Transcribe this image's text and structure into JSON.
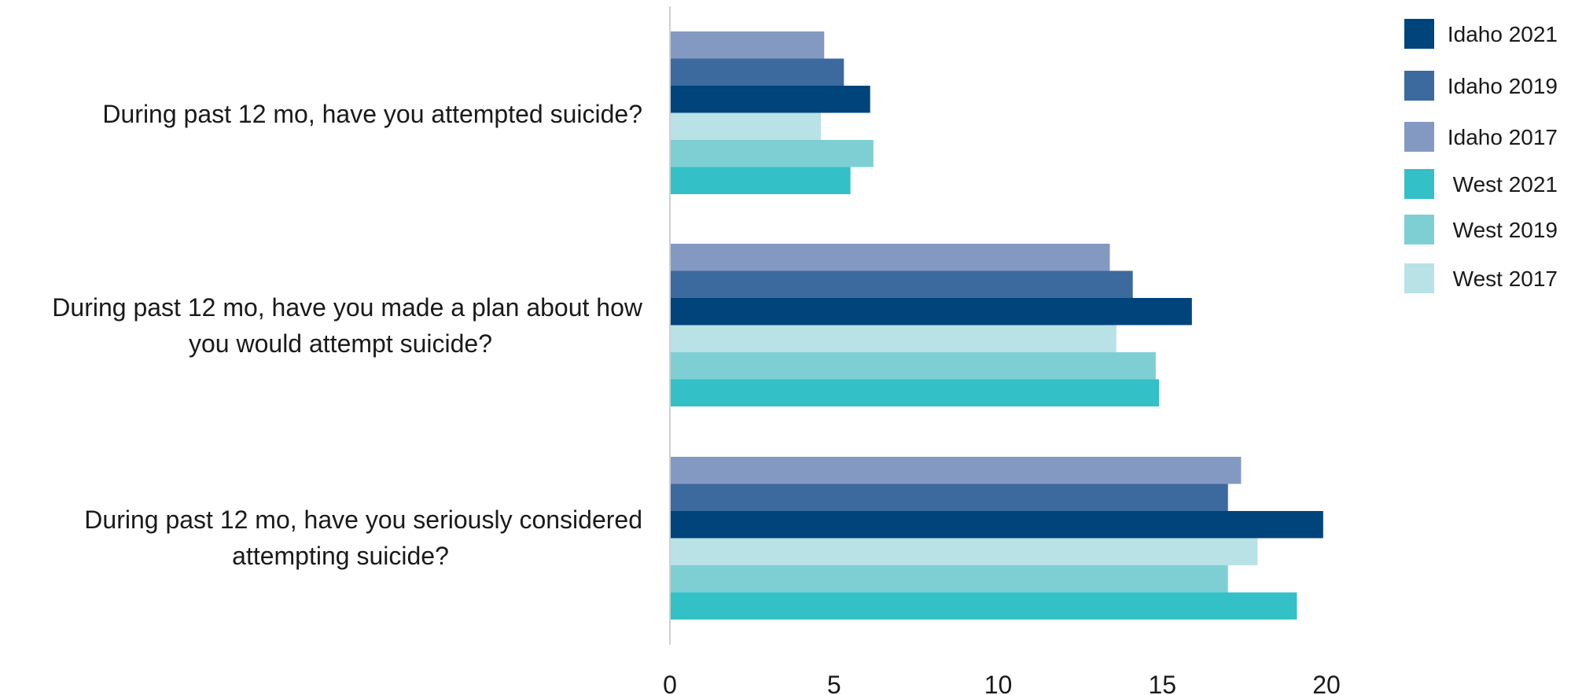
{
  "chart_data": {
    "type": "bar",
    "orientation": "horizontal",
    "title": "",
    "xlabel": "",
    "ylabel": "",
    "xlim": [
      0,
      20
    ],
    "x_ticks": [
      "0",
      "5",
      "10",
      "15",
      "20"
    ],
    "grid": false,
    "legend_position": "top-right",
    "categories": [
      {
        "lines": [
          "During past 12 mo, have you attempted suicide?"
        ]
      },
      {
        "lines": [
          "During past 12 mo, have you made a plan about how",
          "you would attempt suicide?"
        ]
      },
      {
        "lines": [
          "During past 12 mo, have you seriously considered",
          "attempting suicide?"
        ]
      }
    ],
    "series": [
      {
        "name": "Idaho 2017",
        "color": "#8499C2",
        "values": [
          4.7,
          13.4,
          17.4
        ]
      },
      {
        "name": "Idaho 2019",
        "color": "#3D6A9E",
        "values": [
          5.3,
          14.1,
          17.0
        ]
      },
      {
        "name": "Idaho 2021",
        "color": "#00447C",
        "values": [
          6.1,
          15.9,
          19.9
        ]
      },
      {
        "name": "West 2017",
        "color": "#B8E2E5",
        "values": [
          4.6,
          13.6,
          17.9
        ]
      },
      {
        "name": "West 2019",
        "color": "#7ECFD4",
        "values": [
          6.2,
          14.8,
          17.0
        ]
      },
      {
        "name": "West 2021",
        "color": "#33C0C6",
        "values": [
          5.5,
          14.9,
          19.1
        ]
      }
    ],
    "legend": [
      {
        "name": "Idaho 2021",
        "color": "#00447C"
      },
      {
        "name": "Idaho 2019",
        "color": "#3D6A9E"
      },
      {
        "name": "Idaho 2017",
        "color": "#8499C2"
      },
      {
        "name": "West 2021",
        "color": "#33C0C6"
      },
      {
        "name": "West 2019",
        "color": "#7ECFD4"
      },
      {
        "name": "West 2017",
        "color": "#B8E2E5"
      }
    ]
  }
}
